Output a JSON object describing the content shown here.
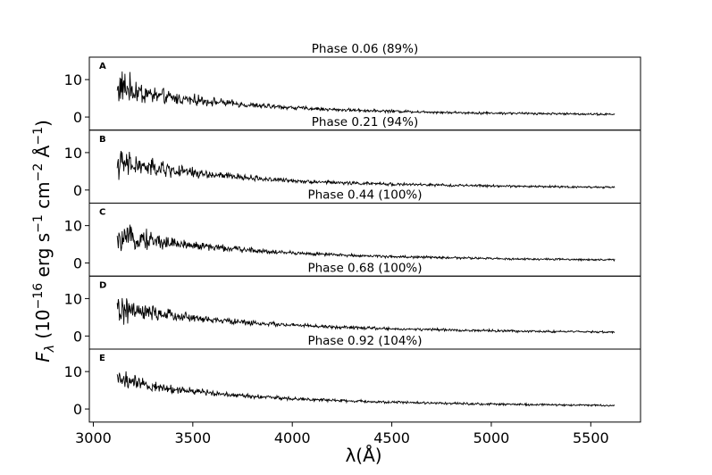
{
  "chart_data": {
    "type": "line",
    "xlabel": "λ(Å)",
    "ylabel": "F_λ (10^-16 erg s^-1 cm^-2 Å^-1)",
    "ylabel_parts": {
      "F": "F",
      "lambda_sub": "λ",
      "open": " (10",
      "exp1": "−16",
      "erg": " erg s",
      "exp2": "−1",
      "cm": " cm",
      "exp3": "−2",
      "ang": " Å",
      "exp4": "−1",
      "close": ")"
    },
    "xlim": [
      2980,
      5750
    ],
    "xticks": [
      3000,
      3500,
      4000,
      4500,
      5000,
      5500
    ],
    "xtick_labels": [
      "3000",
      "3500",
      "4000",
      "4500",
      "5000",
      "5500"
    ],
    "ylim": [
      -3.5,
      16
    ],
    "yticks": [
      0,
      10
    ],
    "ytick_labels": [
      "0",
      "10"
    ],
    "grid": false,
    "panels": [
      {
        "label": "A",
        "title": "Phase 0.06 (89%)",
        "line_color": "#000000",
        "x": [
          3120,
          3150,
          3200,
          3300,
          3400,
          3500,
          3600,
          3700,
          3800,
          3900,
          4000,
          4200,
          4400,
          4600,
          4800,
          5000,
          5200,
          5400,
          5620
        ],
        "y": [
          7.5,
          8.0,
          7.0,
          5.8,
          5.0,
          4.6,
          4.1,
          3.6,
          3.1,
          2.8,
          2.5,
          2.0,
          1.7,
          1.45,
          1.2,
          1.05,
          0.95,
          0.85,
          0.7
        ],
        "noise": [
          5.0,
          4.5,
          3.8,
          2.5,
          1.8,
          1.5,
          1.1,
          0.9,
          0.75,
          0.65,
          0.55,
          0.45,
          0.4,
          0.38,
          0.35,
          0.33,
          0.3,
          0.3,
          0.28
        ]
      },
      {
        "label": "B",
        "title": "Phase 0.21 (94%)",
        "line_color": "#000000",
        "x": [
          3120,
          3150,
          3200,
          3300,
          3400,
          3500,
          3600,
          3700,
          3800,
          3900,
          4000,
          4200,
          4400,
          4600,
          4800,
          5000,
          5200,
          5400,
          5620
        ],
        "y": [
          7.0,
          6.8,
          6.5,
          5.8,
          5.2,
          4.6,
          4.0,
          3.6,
          3.2,
          2.8,
          2.5,
          2.0,
          1.7,
          1.45,
          1.25,
          1.1,
          0.95,
          0.85,
          0.7
        ],
        "noise": [
          4.0,
          3.6,
          3.2,
          2.6,
          1.8,
          1.4,
          1.1,
          0.9,
          0.75,
          0.65,
          0.55,
          0.45,
          0.42,
          0.38,
          0.35,
          0.33,
          0.3,
          0.3,
          0.28
        ]
      },
      {
        "label": "C",
        "title": "Phase 0.44 (100%)",
        "line_color": "#000000",
        "x": [
          3120,
          3150,
          3200,
          3300,
          3400,
          3500,
          3600,
          3700,
          3800,
          3900,
          4000,
          4200,
          4400,
          4600,
          4800,
          5000,
          5200,
          5400,
          5620
        ],
        "y": [
          5.5,
          6.2,
          6.8,
          6.0,
          5.3,
          4.7,
          4.2,
          3.8,
          3.4,
          3.0,
          2.7,
          2.2,
          1.85,
          1.6,
          1.4,
          1.2,
          1.05,
          0.95,
          0.85
        ],
        "noise": [
          2.5,
          2.8,
          3.5,
          2.2,
          1.6,
          1.3,
          1.0,
          0.85,
          0.7,
          0.6,
          0.5,
          0.42,
          0.38,
          0.35,
          0.33,
          0.3,
          0.28,
          0.27,
          0.26
        ]
      },
      {
        "label": "D",
        "title": "Phase 0.68 (100%)",
        "line_color": "#000000",
        "x": [
          3120,
          3150,
          3200,
          3300,
          3400,
          3500,
          3600,
          3700,
          3800,
          3900,
          4000,
          4200,
          4400,
          4600,
          4800,
          5000,
          5200,
          5400,
          5620
        ],
        "y": [
          6.5,
          7.0,
          6.5,
          6.0,
          5.5,
          4.8,
          4.3,
          3.9,
          3.5,
          3.2,
          2.9,
          2.4,
          2.05,
          1.8,
          1.6,
          1.4,
          1.25,
          1.15,
          1.05
        ],
        "noise": [
          4.5,
          3.6,
          2.8,
          1.9,
          1.4,
          1.15,
          0.95,
          0.8,
          0.7,
          0.6,
          0.5,
          0.45,
          0.42,
          0.38,
          0.35,
          0.33,
          0.3,
          0.3,
          0.28
        ]
      },
      {
        "label": "E",
        "title": "Phase 0.92 (104%)",
        "line_color": "#000000",
        "x": [
          3120,
          3150,
          3200,
          3300,
          3400,
          3500,
          3600,
          3700,
          3800,
          3900,
          4000,
          4200,
          4400,
          4600,
          4800,
          5000,
          5200,
          5400,
          5620
        ],
        "y": [
          8.0,
          7.8,
          7.0,
          6.0,
          5.3,
          4.8,
          4.3,
          3.8,
          3.4,
          3.1,
          2.8,
          2.3,
          1.95,
          1.7,
          1.5,
          1.3,
          1.15,
          1.05,
          0.95
        ],
        "noise": [
          4.0,
          2.8,
          2.0,
          1.5,
          1.1,
          0.9,
          0.75,
          0.65,
          0.55,
          0.5,
          0.45,
          0.4,
          0.38,
          0.35,
          0.33,
          0.3,
          0.28,
          0.27,
          0.26
        ]
      }
    ]
  }
}
